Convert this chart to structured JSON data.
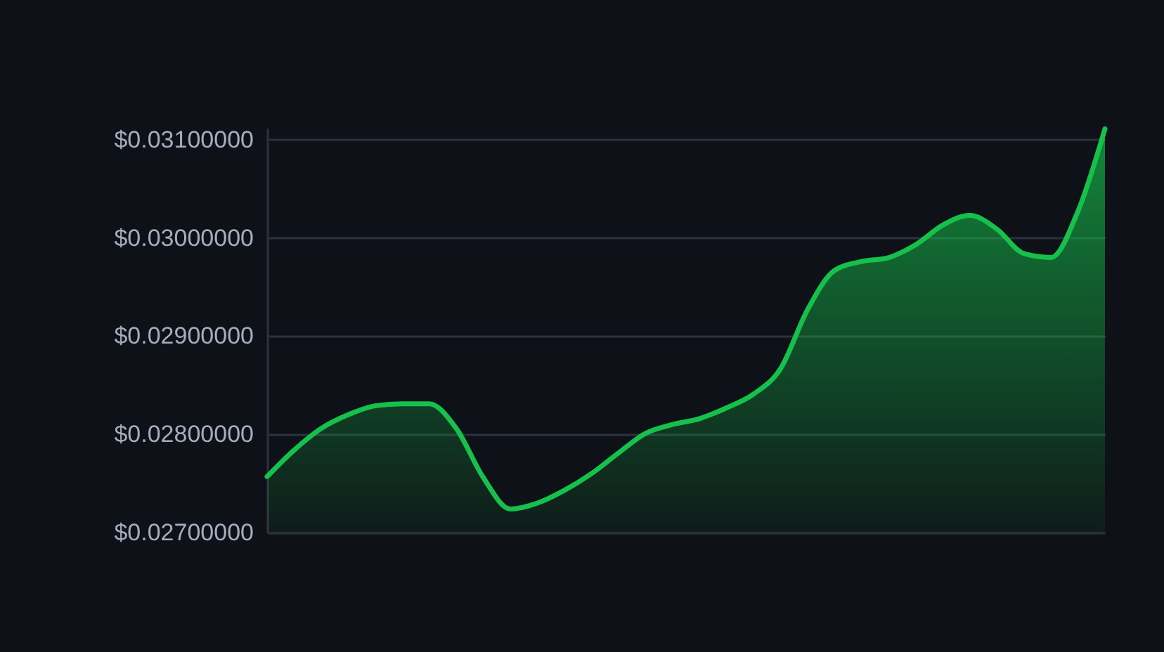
{
  "chart_data": {
    "type": "area",
    "categories": [
      null,
      null,
      null,
      null,
      null,
      null,
      null,
      null,
      null,
      null,
      null,
      null,
      null,
      null,
      null,
      null,
      null,
      null,
      null,
      null,
      null,
      null,
      null,
      null,
      null,
      null,
      null,
      null,
      null,
      null,
      null,
      null
    ],
    "series": [
      {
        "color": "#16c14b",
        "values": [
          0.02757,
          0.02784,
          0.02806,
          0.0282,
          0.02829,
          0.02831,
          0.02831,
          0.02806,
          0.02756,
          0.02724,
          0.0273,
          0.02743,
          0.0276,
          0.02781,
          0.02801,
          0.0281,
          0.02816,
          0.02827,
          0.02841,
          0.02867,
          0.02927,
          0.02967,
          0.02976,
          0.0298,
          0.02993,
          0.03013,
          0.03023,
          0.03009,
          0.02984,
          0.0298,
          0.03027,
          0.03111
        ]
      }
    ],
    "ylim": [
      0.027,
      0.03112
    ],
    "yticks": [
      {
        "value": 0.027,
        "label": "$0.02700000"
      },
      {
        "value": 0.028,
        "label": "$0.02800000"
      },
      {
        "value": 0.029,
        "label": "$0.02900000"
      },
      {
        "value": 0.03,
        "label": "$0.03000000"
      },
      {
        "value": 0.031,
        "label": "$0.03100000"
      }
    ],
    "grid": "y"
  }
}
